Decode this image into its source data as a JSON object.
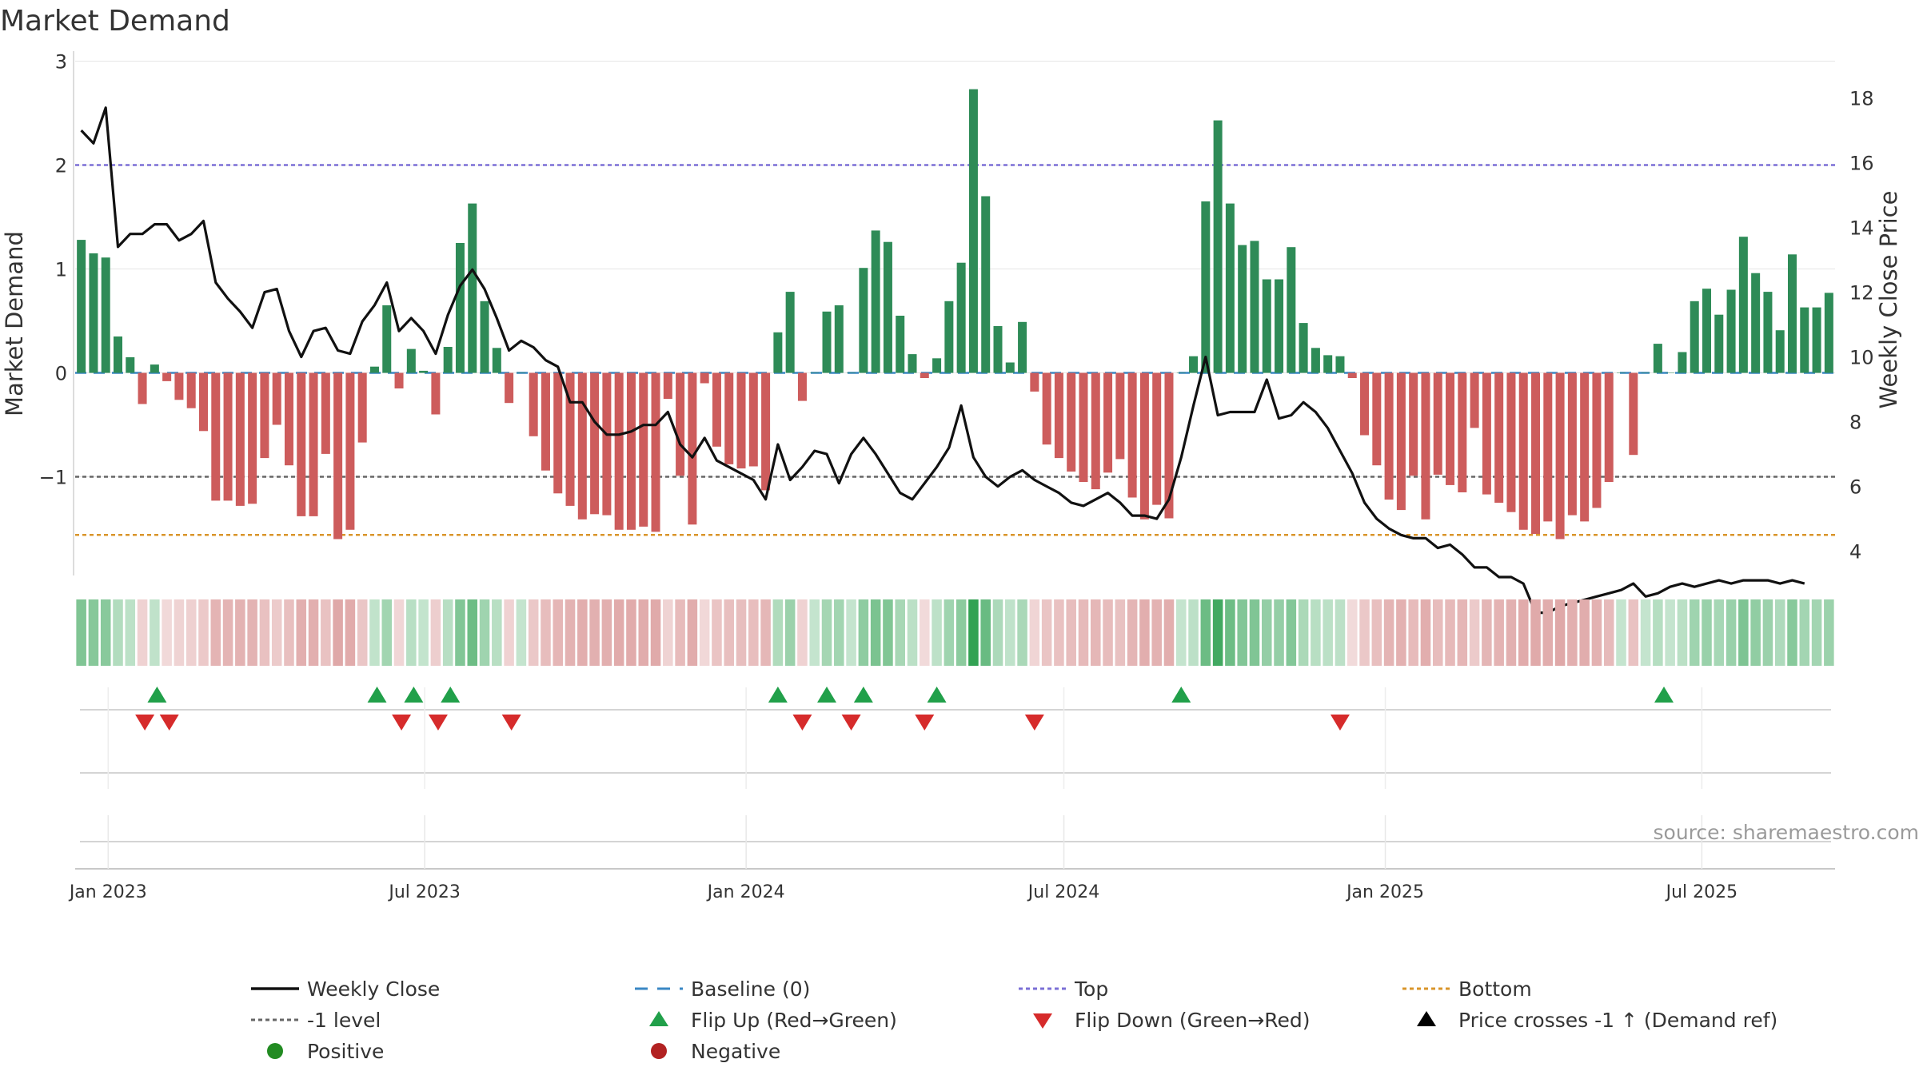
{
  "chart_data": {
    "type": "bar",
    "title": "Market Demand",
    "ylabel": "Market Demand",
    "y2label": "Weekly Close Price",
    "ylim": [
      -1.95,
      3.05
    ],
    "y2lim": [
      3.25,
      19.3
    ],
    "yticks": [
      {
        "v": 3,
        "label": "3"
      },
      {
        "v": 2,
        "label": "2"
      },
      {
        "v": 1,
        "label": "1"
      },
      {
        "v": 0,
        "label": "0"
      },
      {
        "v": -1,
        "label": "−1"
      }
    ],
    "y2ticks": [
      {
        "v": 18,
        "label": "18"
      },
      {
        "v": 16,
        "label": "16"
      },
      {
        "v": 14,
        "label": "14"
      },
      {
        "v": 12,
        "label": "12"
      },
      {
        "v": 10,
        "label": "10"
      },
      {
        "v": 8,
        "label": "8"
      },
      {
        "v": 6,
        "label": "6"
      },
      {
        "v": 4,
        "label": "4"
      }
    ],
    "xticks": [
      {
        "week": 2.2,
        "label": "Jan 2023"
      },
      {
        "week": 28.1,
        "label": "Jul 2023"
      },
      {
        "week": 54.4,
        "label": "Jan 2024"
      },
      {
        "week": 80.4,
        "label": "Jul 2024"
      },
      {
        "week": 106.7,
        "label": "Jan 2025"
      },
      {
        "week": 132.6,
        "label": "Jul 2025"
      }
    ],
    "top_level": 2,
    "bottom_level": -1.56,
    "neg_level": -1,
    "baseline": 0,
    "demand": [
      1.28,
      1.15,
      1.11,
      0.35,
      0.15,
      -0.3,
      0.08,
      -0.08,
      -0.26,
      -0.34,
      -0.56,
      -1.23,
      -1.23,
      -1.28,
      -1.26,
      -0.82,
      -0.5,
      -0.89,
      -1.38,
      -1.38,
      -0.78,
      -1.6,
      -1.51,
      -0.67,
      0.06,
      0.65,
      -0.15,
      0.23,
      0.02,
      -0.4,
      0.25,
      1.25,
      1.63,
      0.69,
      0.24,
      -0.29,
      0,
      -0.61,
      -0.94,
      -1.16,
      -1.28,
      -1.41,
      -1.36,
      -1.37,
      -1.51,
      -1.51,
      -1.48,
      -1.53,
      -0.25,
      -0.99,
      -1.46,
      -0.1,
      -0.71,
      -0.88,
      -0.92,
      -0.9,
      -1.13,
      0.39,
      0.78,
      -0.27,
      0,
      0.59,
      0.65,
      0,
      1.01,
      1.37,
      1.26,
      0.55,
      0.18,
      -0.05,
      0.14,
      0.69,
      1.06,
      2.73,
      1.7,
      0.45,
      0.1,
      0.49,
      -0.18,
      -0.69,
      -0.82,
      -0.95,
      -1.05,
      -1.12,
      -0.96,
      -0.83,
      -1.2,
      -1.41,
      -1.27,
      -1.4,
      0,
      0.16,
      1.65,
      2.43,
      1.63,
      1.23,
      1.27,
      0.9,
      0.9,
      1.21,
      0.48,
      0.24,
      0.17,
      0.16,
      -0.05,
      -0.6,
      -0.89,
      -1.22,
      -1.32,
      -0.99,
      -1.41,
      -0.98,
      -1.08,
      -1.15,
      -0.53,
      -1.17,
      -1.25,
      -1.34,
      -1.51,
      -1.55,
      -1.43,
      -1.6,
      -1.37,
      -1.43,
      -1.3,
      -1.05,
      0,
      -0.79,
      0,
      0.28,
      0,
      0.2,
      0.69,
      0.81,
      0.56,
      0.8,
      1.31,
      0.96,
      0.78,
      0.41,
      1.14,
      0.63,
      0.63,
      0.77
    ],
    "price": [
      17.0,
      16.6,
      17.7,
      13.4,
      13.8,
      13.8,
      14.1,
      14.1,
      13.6,
      13.8,
      14.2,
      12.3,
      11.8,
      11.4,
      10.9,
      12.0,
      12.1,
      10.8,
      10.0,
      10.8,
      10.9,
      10.2,
      10.1,
      11.1,
      11.6,
      12.3,
      10.8,
      11.2,
      10.8,
      10.1,
      11.3,
      12.2,
      12.7,
      12.1,
      11.2,
      10.2,
      10.5,
      10.3,
      9.9,
      9.7,
      8.6,
      8.6,
      8.0,
      7.6,
      7.6,
      7.7,
      7.9,
      7.9,
      8.3,
      7.3,
      6.9,
      7.5,
      6.8,
      6.6,
      6.4,
      6.2,
      5.6,
      7.3,
      6.2,
      6.6,
      7.1,
      7.0,
      6.1,
      7.0,
      7.5,
      7.0,
      6.4,
      5.8,
      5.6,
      6.1,
      6.6,
      7.2,
      8.5,
      6.9,
      6.3,
      6.0,
      6.3,
      6.5,
      6.2,
      6.0,
      5.8,
      5.5,
      5.4,
      5.6,
      5.8,
      5.5,
      5.1,
      5.1,
      5.0,
      5.6,
      6.9,
      8.5,
      10.0,
      8.2,
      8.3,
      8.3,
      8.3,
      9.3,
      8.1,
      8.2,
      8.6,
      8.3,
      7.8,
      7.1,
      6.4,
      5.5,
      5.0,
      4.7,
      4.5,
      4.4,
      4.4,
      4.1,
      4.2,
      3.9,
      3.5,
      3.5,
      3.2,
      3.2,
      3.0,
      2.1,
      2.1,
      2.3,
      2.4,
      2.5,
      2.6,
      2.7,
      2.8,
      3.0,
      2.6,
      2.7,
      2.9,
      3.0,
      2.9,
      3.0,
      3.1,
      3.0,
      3.1,
      3.1,
      3.1,
      3.0,
      3.1,
      3.0
    ],
    "flip_up_weeks": [
      6.2,
      24.2,
      27.2,
      30.2,
      57.0,
      61.0,
      64.0,
      70.0,
      90.0,
      129.5
    ],
    "flip_down_weeks": [
      5.2,
      7.2,
      26.2,
      29.2,
      35.2,
      59.0,
      63.0,
      69.0,
      78.0,
      103.0
    ],
    "legend": [
      {
        "key": "weekly_close",
        "label": "Weekly Close",
        "marker": "solid-line",
        "color": "#111111"
      },
      {
        "key": "baseline",
        "label": "Baseline (0)",
        "marker": "dashed-line",
        "color": "#3a87c4"
      },
      {
        "key": "top",
        "label": "Top",
        "marker": "dotted-line",
        "color": "#7b6fd6"
      },
      {
        "key": "bottom",
        "label": "Bottom",
        "marker": "dotted-line",
        "color": "#d9952a"
      },
      {
        "key": "neg1",
        "label": "-1 level",
        "marker": "dotted-line",
        "color": "#666666"
      },
      {
        "key": "flip_up",
        "label": "Flip Up (Red→Green)",
        "marker": "triangle-up",
        "color": "#21a04a"
      },
      {
        "key": "flip_down",
        "label": "Flip Down (Green→Red)",
        "marker": "triangle-down",
        "color": "#d62b2b"
      },
      {
        "key": "price_cross",
        "label": "Price crosses -1 ↑ (Demand ref)",
        "marker": "triangle-up",
        "color": "#000000"
      },
      {
        "key": "positive",
        "label": "Positive",
        "marker": "circle",
        "color": "#228b22"
      },
      {
        "key": "negative",
        "label": "Negative",
        "marker": "circle",
        "color": "#b22222"
      }
    ],
    "source": "source: sharemaestro.com"
  },
  "colors": {
    "positive_bar": "#2e8b57",
    "negative_bar": "#cd5c5c",
    "grid": "#e6e6e6",
    "axis_text": "#333333"
  }
}
